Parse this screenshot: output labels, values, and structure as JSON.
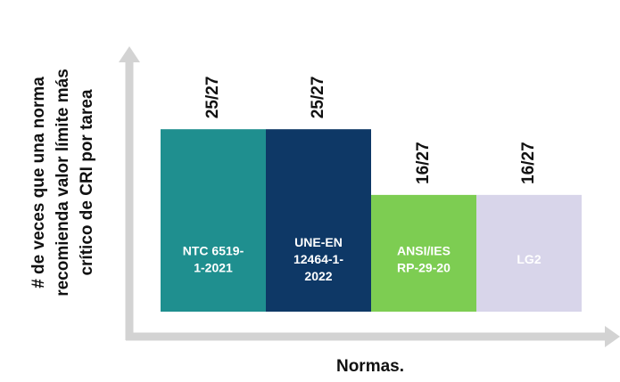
{
  "chart_data": {
    "type": "bar",
    "ylabel": [
      "# de veces que una norma",
      "recomienda valor límite más",
      "crítico de CRI por tarea"
    ],
    "xlabel": "Normas.",
    "categories": [
      [
        "NTC 6519-",
        "1-2021"
      ],
      [
        "UNE-EN",
        "12464-1-",
        "2022"
      ],
      [
        "ANSI/IES",
        "RP-29-20"
      ],
      [
        "LG2"
      ]
    ],
    "values": [
      25,
      25,
      16,
      16
    ],
    "value_labels": [
      "25/27",
      "25/27",
      "16/27",
      "16/27"
    ],
    "colors": [
      "#1f8f8f",
      "#0e3866",
      "#7dcd52",
      "#d8d5ea"
    ],
    "ylim": [
      0,
      36
    ]
  }
}
